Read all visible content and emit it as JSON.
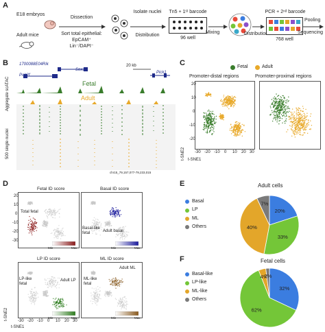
{
  "panels": {
    "A": "A",
    "B": "B",
    "C": "C",
    "D": "D",
    "E": "E",
    "F": "F"
  },
  "panelA": {
    "e18": "E18 embryos",
    "adult": "Adult mice",
    "dissection": "Dissection",
    "sort": "Sort total epithelial:",
    "sort2": "EpCAM⁺",
    "sort3": "Lin⁻/DAPI⁻",
    "isolate": "Isolate nuclei",
    "distribution1": "Distribution",
    "tn5": "Tn5 + 1ˢᵗ barcode",
    "well96": "96 well",
    "mixing": "Mixing",
    "distribution2": "Distribution",
    "pcr": "PCR + 2ⁿᵈ barcode",
    "well768": "768 well",
    "pooling": "Pooling",
    "sequencing": "Sequencing"
  },
  "panelB": {
    "gene1": "1700088E04Rik",
    "gene2": "Sox10",
    "gene3": "Pick1",
    "gene4": "Polr2f",
    "scale": "20 kb",
    "fetal": "Fetal",
    "adult": "Adult",
    "ylabel1": "Aggregate scATAC",
    "ylabel2": "500 single nuclei",
    "coord": "chr15_79,157,077-79,233,015"
  },
  "panelC": {
    "legend_fetal": "Fetal",
    "legend_adult": "Adult",
    "title1": "Promoter-distal regions",
    "title2": "Promoter-proximal regions",
    "ylabel": "t-SNE2",
    "xlabel": "t-SNE1",
    "ticks_x": [
      "-30",
      "-20",
      "-10",
      "0",
      "10",
      "20",
      "30"
    ],
    "ticks_y": [
      "20",
      "10",
      "0",
      "-10",
      "-20"
    ]
  },
  "panelD": {
    "t1": "Fetal ID score",
    "t2": "Basal ID score",
    "t3": "LP ID score",
    "t4": "ML ID score",
    "a1": "Total fetal",
    "a2": "Basal-like fetal",
    "a3": "Adult basal",
    "a4": "LP-like fetal",
    "a5": "Adult LP",
    "a6": "ML-like fetal",
    "a7": "Adult ML",
    "min": "Min",
    "max": "Max",
    "ylabel": "t-SNE2",
    "xlabel": "t-SNE1",
    "ticks_x": [
      "-30",
      "-20",
      "-10",
      "0",
      "10",
      "20",
      "30"
    ],
    "ticks_y": [
      "20",
      "10",
      "0",
      "-10",
      "-20",
      "-30"
    ]
  },
  "colors": {
    "fetal": "#3a7d2c",
    "adult": "#e8a92a",
    "basal": "#3b7de0",
    "lp": "#74c638",
    "ml": "#e3a62a",
    "others": "#7a7a7a",
    "fetalScore": "#8b1a1a",
    "basalScore": "#1c1c9e",
    "lpScore": "#2e7d1e",
    "mlScore": "#8a5a1e"
  },
  "chart_data": [
    {
      "type": "pie",
      "title": "Adult cells",
      "categories": [
        "Basal",
        "LP",
        "ML",
        "Others"
      ],
      "values": [
        20,
        33,
        40,
        7
      ],
      "labels": [
        "20%",
        "33%",
        "40%",
        "7%"
      ],
      "legend": "left"
    },
    {
      "type": "pie",
      "title": "Fetal cells",
      "categories": [
        "Basal-like",
        "LP-like",
        "ML-like",
        "Others"
      ],
      "values": [
        32,
        62,
        4,
        2
      ],
      "labels": [
        "32%",
        "62%",
        "4%",
        "2%"
      ],
      "legend": "left"
    }
  ]
}
